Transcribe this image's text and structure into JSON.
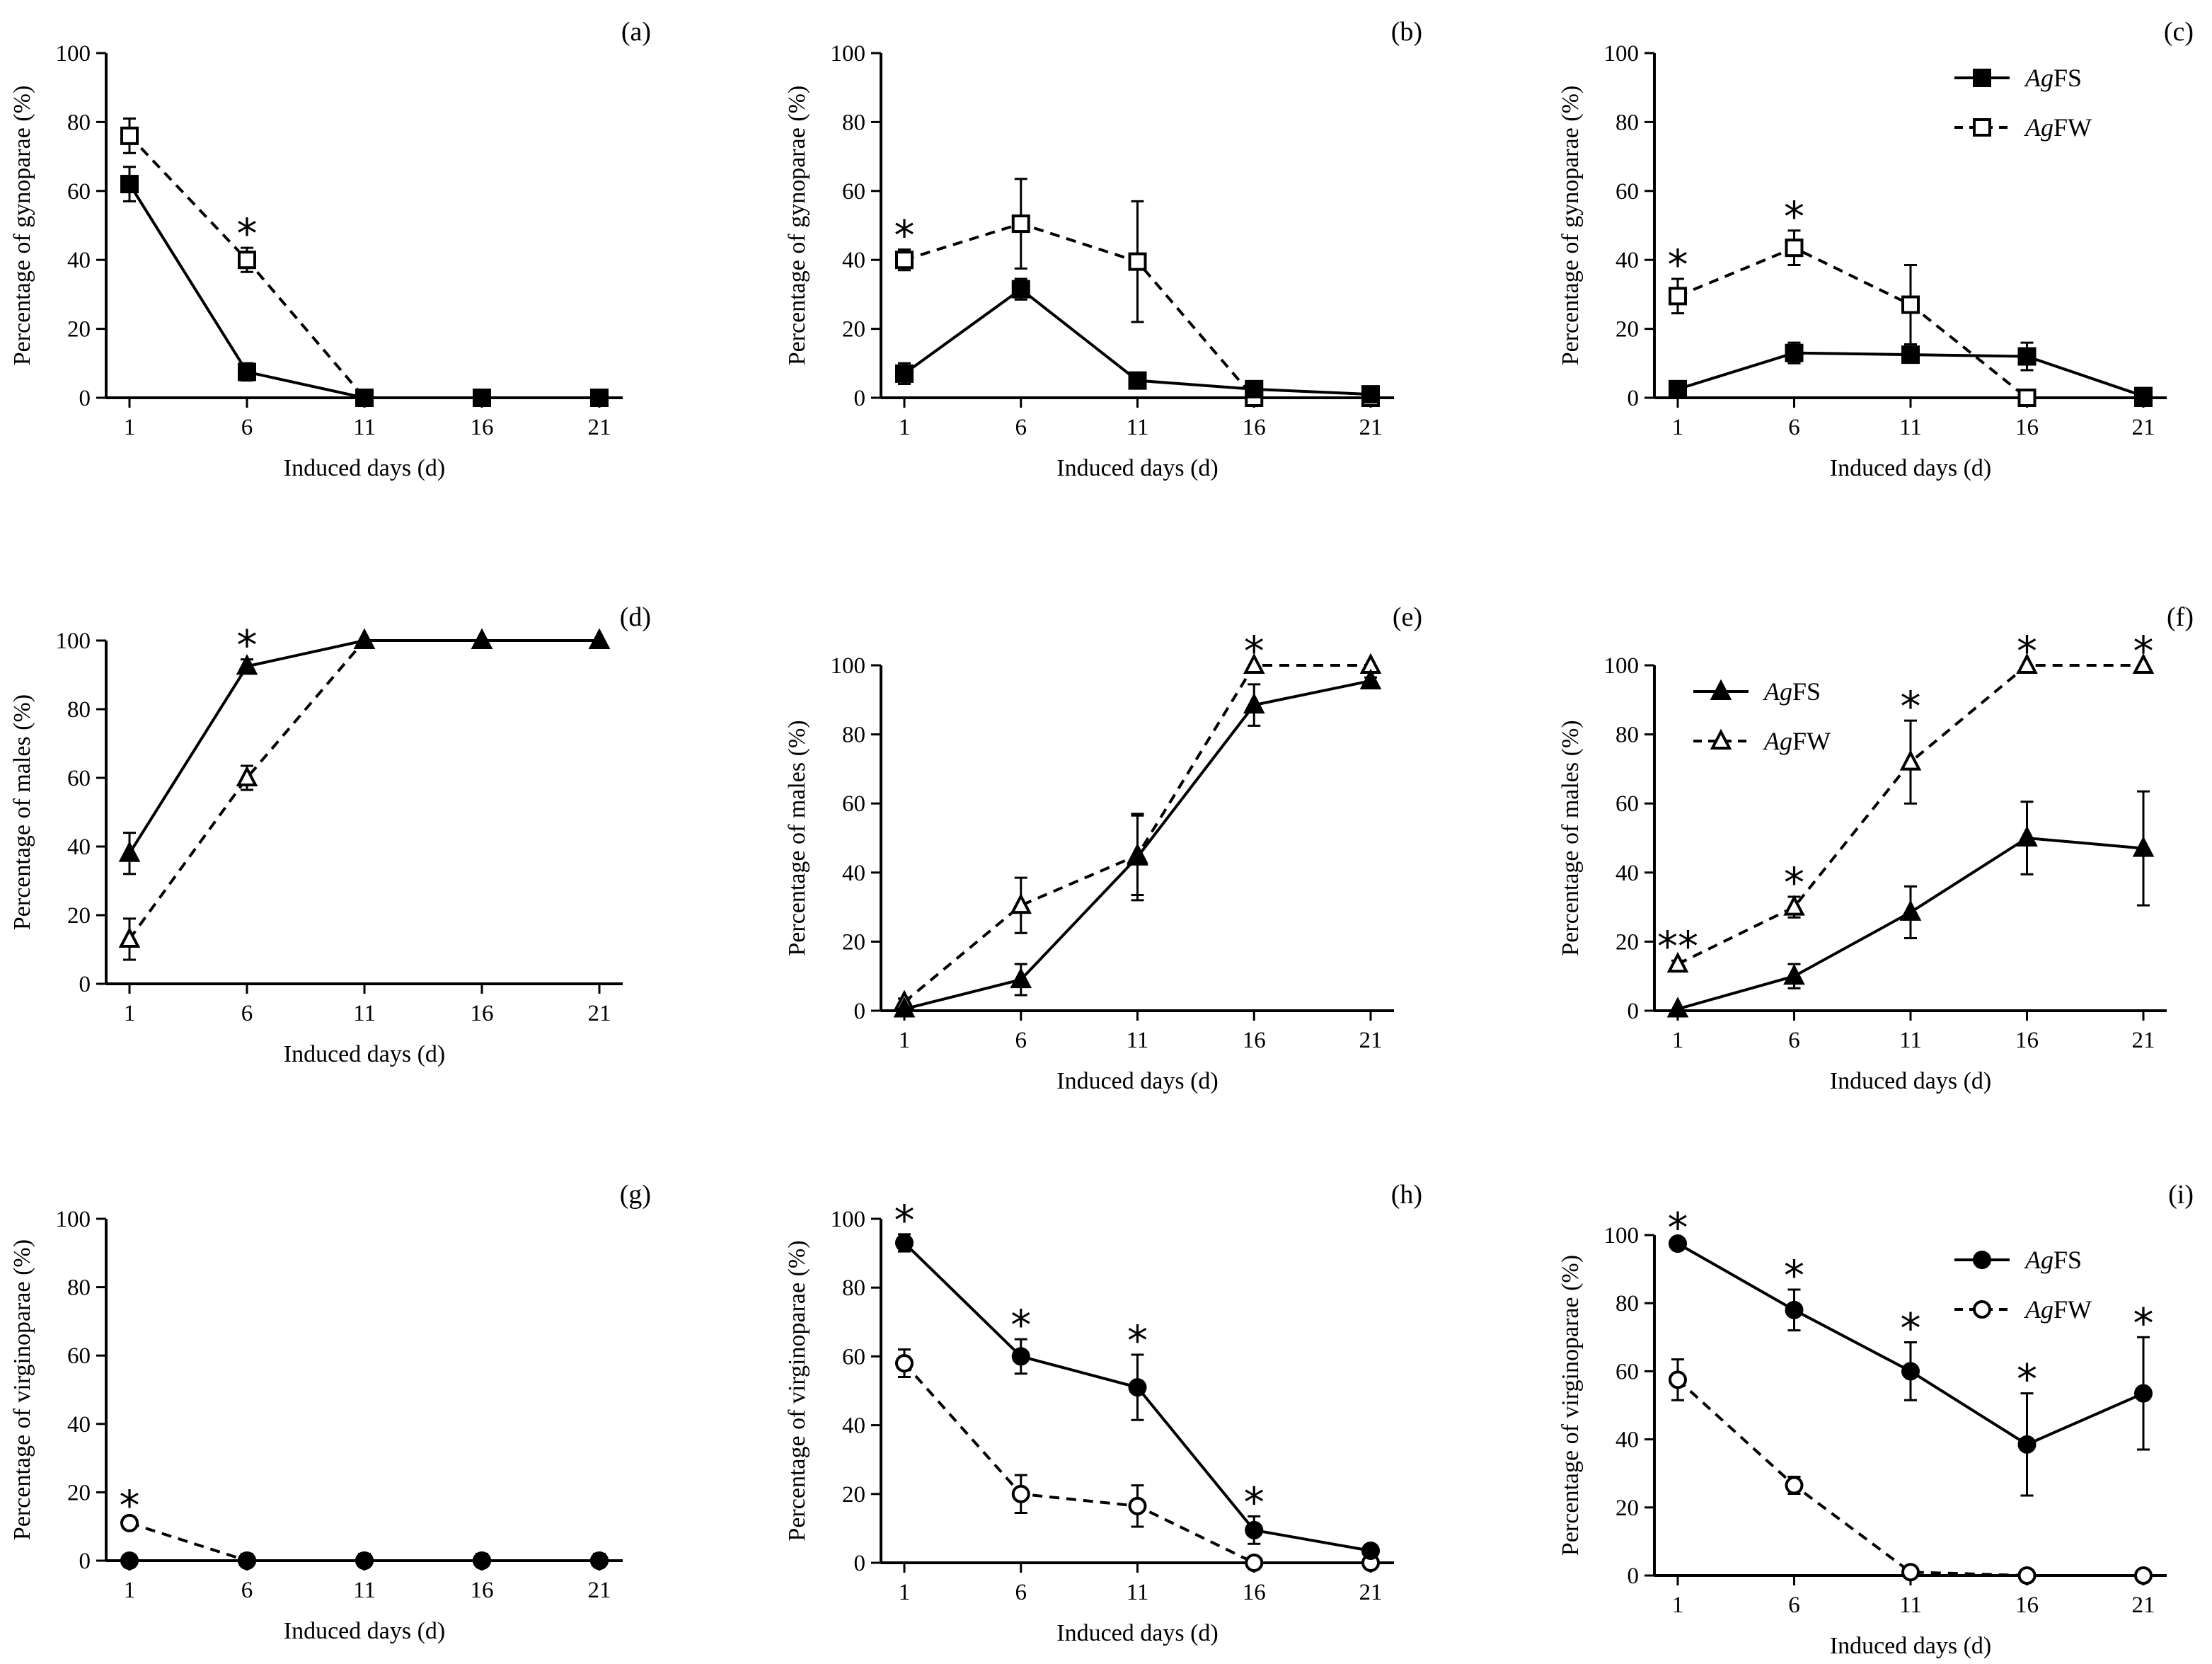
{
  "chart_data": [
    {
      "id": "a",
      "panel_label": "(a)",
      "type": "line",
      "xlabel": "Induced days (d)",
      "ylabel": "Percentage of gynoparae (%)",
      "x": [
        1,
        6,
        11,
        16,
        21
      ],
      "ylim": [
        0,
        100
      ],
      "yticks": [
        0,
        20,
        40,
        60,
        80,
        100
      ],
      "marker": "square",
      "legend": null,
      "series": [
        {
          "name": "AgFS",
          "values": [
            62,
            7.5,
            0,
            0,
            0
          ],
          "err": [
            5,
            2.5,
            0,
            0,
            0
          ]
        },
        {
          "name": "AgFW",
          "values": [
            76,
            40,
            0,
            0,
            0
          ],
          "err": [
            5,
            3.5,
            0,
            0,
            0
          ]
        }
      ],
      "annotations": [
        {
          "x": 6,
          "text": "*"
        }
      ]
    },
    {
      "id": "b",
      "panel_label": "(b)",
      "type": "line",
      "xlabel": "Induced days (d)",
      "ylabel": "Percentage of gynoparae (%)",
      "x": [
        1,
        6,
        11,
        16,
        21
      ],
      "ylim": [
        0,
        100
      ],
      "yticks": [
        0,
        20,
        40,
        60,
        80,
        100
      ],
      "marker": "square",
      "legend": null,
      "series": [
        {
          "name": "AgFS",
          "values": [
            7,
            31.5,
            5,
            2.5,
            1
          ],
          "err": [
            3,
            3,
            1.5,
            1.5,
            1
          ]
        },
        {
          "name": "AgFW",
          "values": [
            40,
            50.5,
            39.5,
            0,
            0
          ],
          "err": [
            3,
            13,
            17.5,
            0,
            0
          ]
        }
      ],
      "annotations": [
        {
          "x": 1,
          "text": "*"
        }
      ]
    },
    {
      "id": "c",
      "panel_label": "(c)",
      "type": "line",
      "xlabel": "Induced days (d)",
      "ylabel": "Percentage of gynoparae (%)",
      "x": [
        1,
        6,
        11,
        16,
        21
      ],
      "ylim": [
        0,
        100
      ],
      "yticks": [
        0,
        20,
        40,
        60,
        80,
        100
      ],
      "marker": "square",
      "legend": "top-right",
      "series": [
        {
          "name": "AgFS",
          "values": [
            2.5,
            13,
            12.5,
            12,
            0.5
          ],
          "err": [
            1,
            3,
            1,
            4,
            1
          ]
        },
        {
          "name": "AgFW",
          "values": [
            29.5,
            43.5,
            27,
            0,
            0
          ],
          "err": [
            5,
            5,
            11.5,
            0,
            0
          ]
        }
      ],
      "annotations": [
        {
          "x": 1,
          "text": "*"
        },
        {
          "x": 6,
          "text": "*"
        }
      ]
    },
    {
      "id": "d",
      "panel_label": "(d)",
      "type": "line",
      "xlabel": "Induced days (d)",
      "ylabel": "Percentage of males (%)",
      "x": [
        1,
        6,
        11,
        16,
        21
      ],
      "ylim": [
        0,
        100
      ],
      "yticks": [
        0,
        20,
        40,
        60,
        80,
        100
      ],
      "marker": "triangle",
      "legend": null,
      "series": [
        {
          "name": "AgFS",
          "values": [
            38,
            92.5,
            100,
            100,
            100
          ],
          "err": [
            6,
            2,
            0,
            0,
            0
          ]
        },
        {
          "name": "AgFW",
          "values": [
            13,
            60,
            100,
            100,
            100
          ],
          "err": [
            6,
            3.5,
            0,
            0,
            0
          ]
        }
      ],
      "annotations": [
        {
          "x": 6,
          "text": "*"
        }
      ]
    },
    {
      "id": "e",
      "panel_label": "(e)",
      "type": "line",
      "xlabel": "Induced days (d)",
      "ylabel": "Percentage of males (%)",
      "x": [
        1,
        6,
        11,
        16,
        21
      ],
      "ylim": [
        0,
        100
      ],
      "yticks": [
        0,
        20,
        40,
        60,
        80,
        100
      ],
      "marker": "triangle",
      "legend": null,
      "series": [
        {
          "name": "AgFS",
          "values": [
            0.5,
            9,
            44.5,
            88.5,
            95.5
          ],
          "err": [
            0,
            4.5,
            12.5,
            6,
            1
          ]
        },
        {
          "name": "AgFW",
          "values": [
            2.5,
            30.5,
            45,
            100,
            100
          ],
          "err": [
            1,
            8,
            11.5,
            0,
            0
          ]
        }
      ],
      "annotations": [
        {
          "x": 16,
          "text": "*"
        }
      ]
    },
    {
      "id": "f",
      "panel_label": "(f)",
      "type": "line",
      "xlabel": "Induced days (d)",
      "ylabel": "Percentage of males (%)",
      "x": [
        1,
        6,
        11,
        16,
        21
      ],
      "ylim": [
        0,
        100
      ],
      "yticks": [
        0,
        20,
        40,
        60,
        80,
        100
      ],
      "marker": "triangle",
      "legend": "upper-left",
      "series": [
        {
          "name": "AgFS",
          "values": [
            0.5,
            10,
            28.5,
            50,
            47
          ],
          "err": [
            0,
            3.5,
            7.5,
            10.5,
            16.5
          ]
        },
        {
          "name": "AgFW",
          "values": [
            13.5,
            30,
            72,
            100,
            100
          ],
          "err": [
            1,
            3,
            12,
            0,
            0
          ]
        }
      ],
      "annotations": [
        {
          "x": 1,
          "text": "**"
        },
        {
          "x": 6,
          "text": "*"
        },
        {
          "x": 11,
          "text": "*"
        },
        {
          "x": 16,
          "text": "*"
        },
        {
          "x": 21,
          "text": "*"
        }
      ]
    },
    {
      "id": "g",
      "panel_label": "(g)",
      "type": "line",
      "xlabel": "Induced days (d)",
      "ylabel": "Percentage of virginoparae (%)",
      "x": [
        1,
        6,
        11,
        16,
        21
      ],
      "ylim": [
        0,
        100
      ],
      "yticks": [
        0,
        20,
        40,
        60,
        80,
        100
      ],
      "marker": "circle",
      "legend": null,
      "series": [
        {
          "name": "AgFS",
          "values": [
            0,
            0,
            0,
            0,
            0
          ],
          "err": [
            0,
            2,
            2,
            2,
            2
          ]
        },
        {
          "name": "AgFW",
          "values": [
            11,
            0,
            0,
            0,
            0
          ],
          "err": [
            1,
            0,
            0,
            0,
            0
          ]
        }
      ],
      "annotations": [
        {
          "x": 1,
          "text": "*"
        }
      ]
    },
    {
      "id": "h",
      "panel_label": "(h)",
      "type": "line",
      "xlabel": "Induced days (d)",
      "ylabel": "Percentage of virginoparae (%)",
      "x": [
        1,
        6,
        11,
        16,
        21
      ],
      "ylim": [
        0,
        100
      ],
      "yticks": [
        0,
        20,
        40,
        60,
        80,
        100
      ],
      "marker": "circle",
      "legend": null,
      "series": [
        {
          "name": "AgFS",
          "values": [
            93,
            60,
            51,
            9.5,
            3.5
          ],
          "err": [
            2.5,
            5,
            9.5,
            4,
            1.5
          ]
        },
        {
          "name": "AgFW",
          "values": [
            58,
            20,
            16.5,
            0,
            0
          ],
          "err": [
            4,
            5.5,
            6,
            0,
            0
          ]
        }
      ],
      "annotations": [
        {
          "x": 1,
          "text": "*"
        },
        {
          "x": 6,
          "text": "*"
        },
        {
          "x": 11,
          "text": "*"
        },
        {
          "x": 16,
          "text": "*"
        }
      ]
    },
    {
      "id": "i",
      "panel_label": "(i)",
      "type": "line",
      "xlabel": "Induced days (d)",
      "ylabel": "Percentage of virginoparae (%)",
      "x": [
        1,
        6,
        11,
        16,
        21
      ],
      "ylim": [
        0,
        100
      ],
      "yticks": [
        0,
        20,
        40,
        60,
        80,
        100
      ],
      "marker": "circle",
      "legend": "top-right",
      "series": [
        {
          "name": "AgFS",
          "values": [
            97.5,
            78,
            60,
            38.5,
            53.5
          ],
          "err": [
            0.5,
            6,
            8.5,
            15,
            16.5
          ]
        },
        {
          "name": "AgFW",
          "values": [
            57.5,
            26.5,
            1,
            0,
            0
          ],
          "err": [
            6,
            2.5,
            1,
            0,
            0
          ]
        }
      ],
      "annotations": [
        {
          "x": 1,
          "text": "*"
        },
        {
          "x": 6,
          "text": "*"
        },
        {
          "x": 11,
          "text": "*"
        },
        {
          "x": 16,
          "text": "*"
        },
        {
          "x": 21,
          "text": "*"
        }
      ]
    }
  ]
}
